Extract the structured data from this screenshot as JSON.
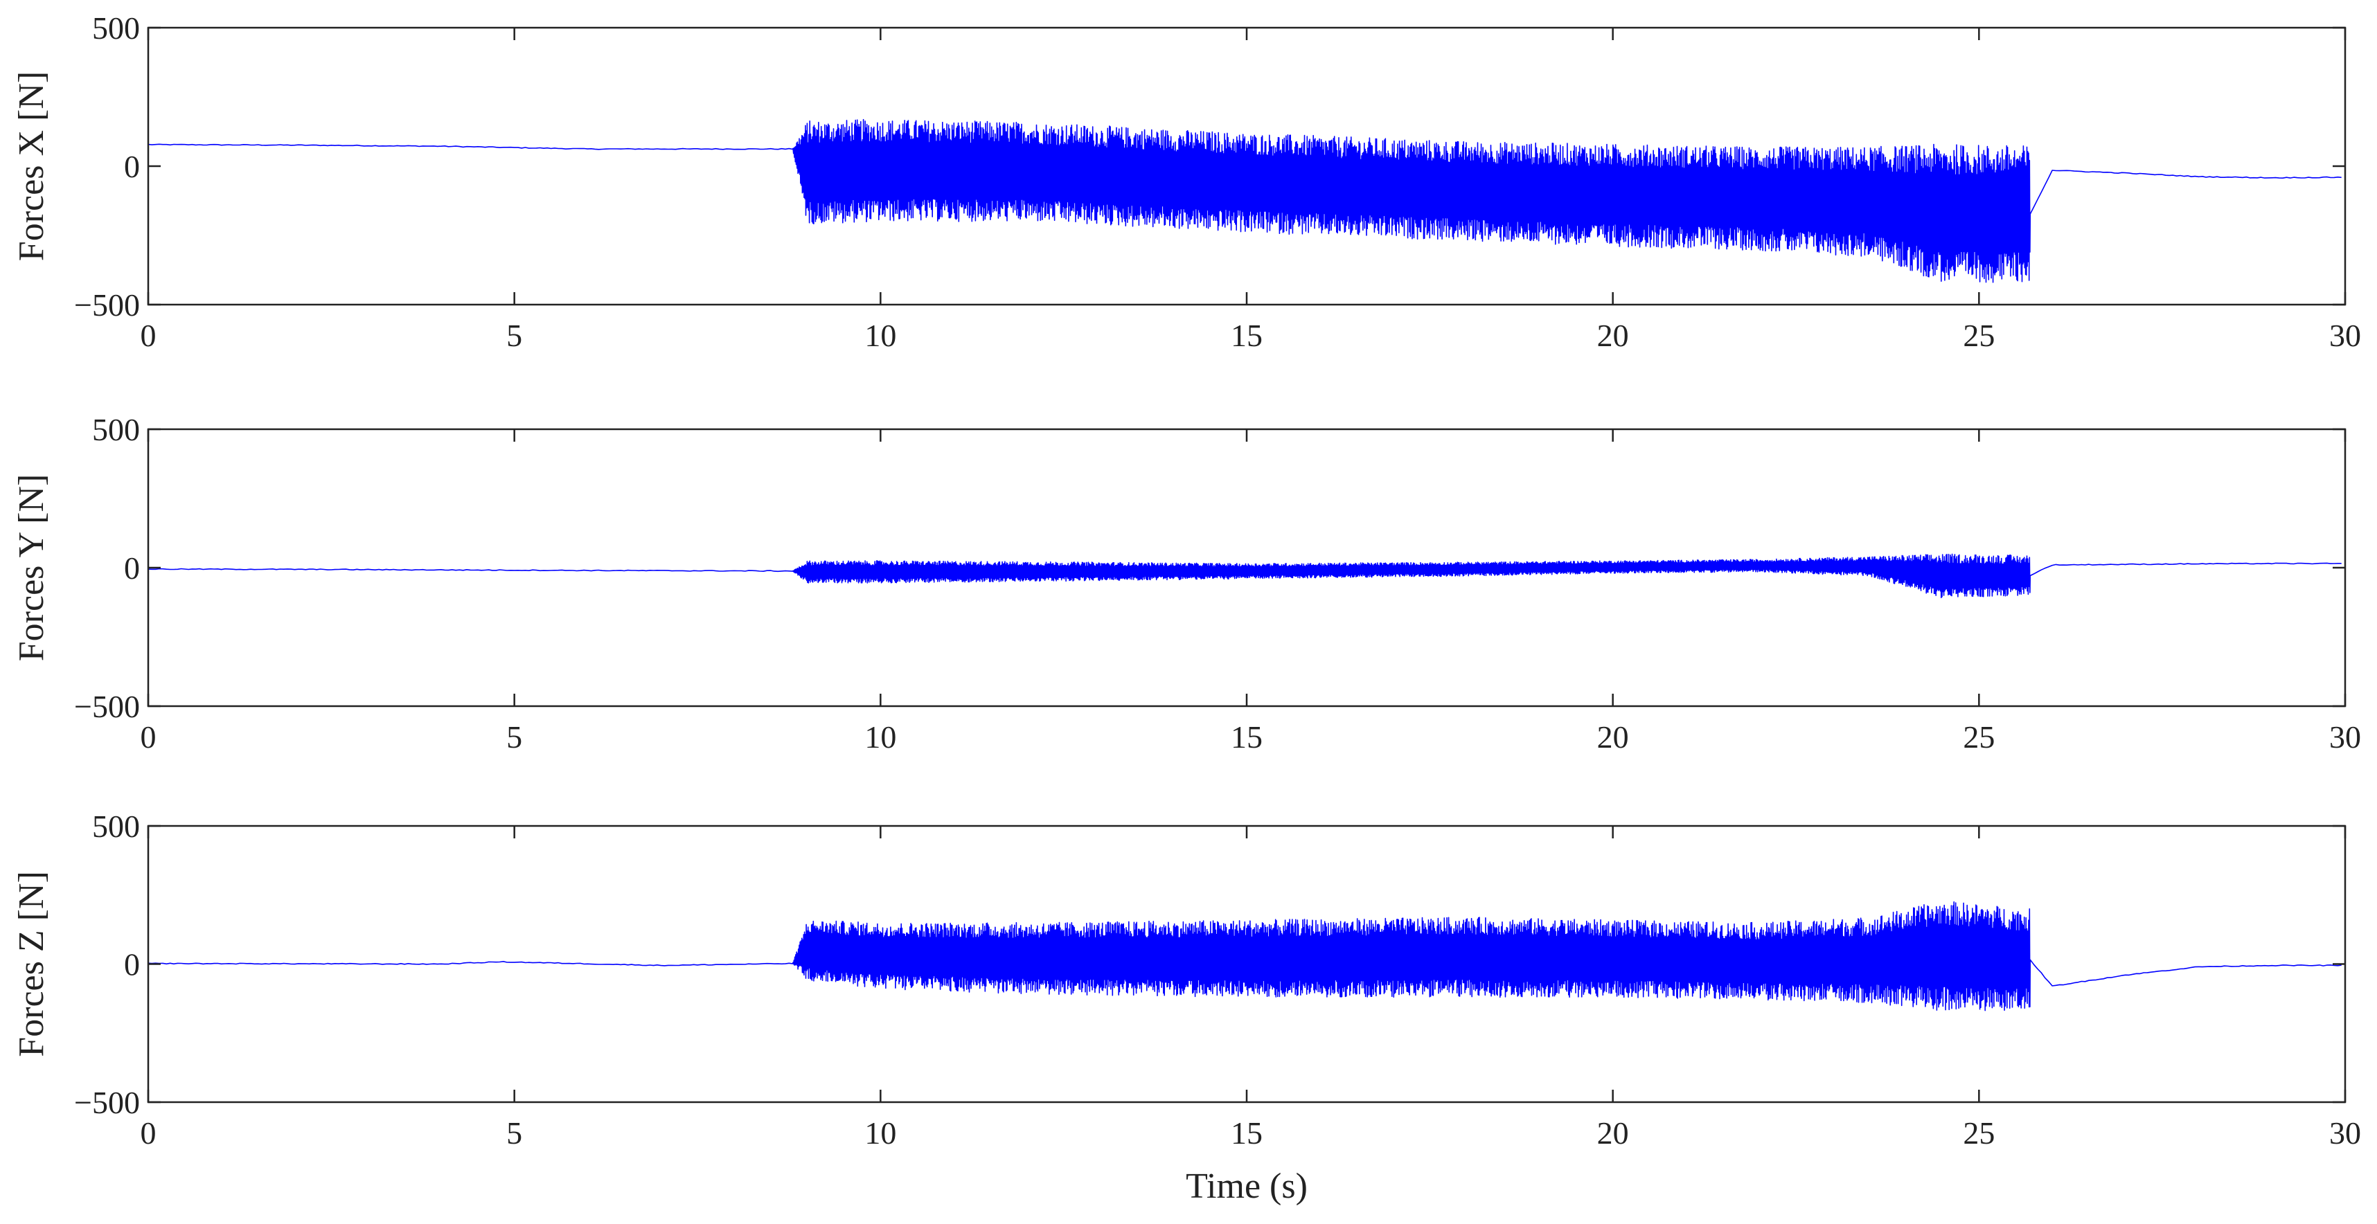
{
  "chart_data": [
    {
      "type": "line",
      "ylabel": "Forces X [N]",
      "xlabel": "",
      "xlim": [
        0,
        30
      ],
      "ylim": [
        -500,
        500
      ],
      "xticks": [
        0,
        5,
        10,
        15,
        20,
        25,
        30
      ],
      "yticks": [
        -500,
        0,
        500
      ],
      "xtick_labels": [
        "0",
        "5",
        "10",
        "15",
        "20",
        "25",
        "30"
      ],
      "ytick_labels": [
        "−500",
        "0",
        "500"
      ],
      "color": "#0000ff",
      "series": [
        {
          "x": [
            0,
            2,
            4,
            6,
            8.8,
            9,
            10,
            12,
            15,
            18,
            20,
            22,
            23.5,
            24.5,
            25.7,
            26,
            27,
            28,
            29,
            30
          ],
          "upper": [
            78,
            76,
            72,
            62,
            62,
            165,
            170,
            160,
            120,
            90,
            80,
            70,
            70,
            80,
            75,
            -15,
            -25,
            -38,
            -42,
            -40
          ],
          "lower": [
            78,
            76,
            72,
            62,
            62,
            -210,
            -200,
            -200,
            -240,
            -270,
            -290,
            -305,
            -330,
            -420,
            -420,
            -15,
            -25,
            -38,
            -42,
            -40
          ],
          "burst_start": 8.8,
          "burst_end": 25.7
        }
      ]
    },
    {
      "type": "line",
      "ylabel": "Forces Y [N]",
      "xlabel": "",
      "xlim": [
        0,
        30
      ],
      "ylim": [
        -500,
        500
      ],
      "xticks": [
        0,
        5,
        10,
        15,
        20,
        25,
        30
      ],
      "yticks": [
        -500,
        0,
        500
      ],
      "xtick_labels": [
        "0",
        "5",
        "10",
        "15",
        "20",
        "25",
        "30"
      ],
      "ytick_labels": [
        "−500",
        "0",
        "500"
      ],
      "color": "#0000ff",
      "series": [
        {
          "x": [
            0,
            2,
            4,
            6,
            8.8,
            9,
            10,
            12,
            15,
            18,
            20,
            22,
            23.5,
            24.5,
            25.7,
            26,
            27,
            28,
            29,
            30
          ],
          "upper": [
            -5,
            -6,
            -8,
            -10,
            -12,
            25,
            25,
            22,
            15,
            20,
            25,
            30,
            40,
            50,
            45,
            10,
            12,
            14,
            15,
            15
          ],
          "lower": [
            -5,
            -6,
            -8,
            -10,
            -12,
            -55,
            -55,
            -50,
            -40,
            -30,
            -20,
            -15,
            -30,
            -110,
            -100,
            10,
            12,
            14,
            15,
            15
          ],
          "burst_start": 8.8,
          "burst_end": 25.7
        }
      ]
    },
    {
      "type": "line",
      "ylabel": "Forces Z [N]",
      "xlabel": "Time (s)",
      "xlim": [
        0,
        30
      ],
      "ylim": [
        -500,
        500
      ],
      "xticks": [
        0,
        5,
        10,
        15,
        20,
        25,
        30
      ],
      "yticks": [
        -500,
        0,
        500
      ],
      "xtick_labels": [
        "0",
        "5",
        "10",
        "15",
        "20",
        "25",
        "30"
      ],
      "ytick_labels": [
        "−500",
        "0",
        "500"
      ],
      "color": "#0000ff",
      "series": [
        {
          "x": [
            0,
            2,
            4,
            4.8,
            5.5,
            7,
            8.8,
            9,
            10,
            12,
            15,
            18,
            20,
            22,
            23.5,
            24.5,
            25.7,
            26,
            27,
            28,
            29,
            30
          ],
          "upper": [
            2,
            1,
            0,
            8,
            4,
            -5,
            2,
            160,
            150,
            150,
            160,
            170,
            160,
            150,
            170,
            230,
            200,
            -80,
            -40,
            -10,
            -5,
            -5
          ],
          "lower": [
            2,
            1,
            0,
            8,
            4,
            -5,
            2,
            -60,
            -90,
            -110,
            -120,
            -120,
            -120,
            -130,
            -140,
            -170,
            -170,
            -80,
            -40,
            -10,
            -5,
            -5
          ],
          "burst_start": 8.8,
          "burst_end": 25.7
        }
      ]
    }
  ]
}
